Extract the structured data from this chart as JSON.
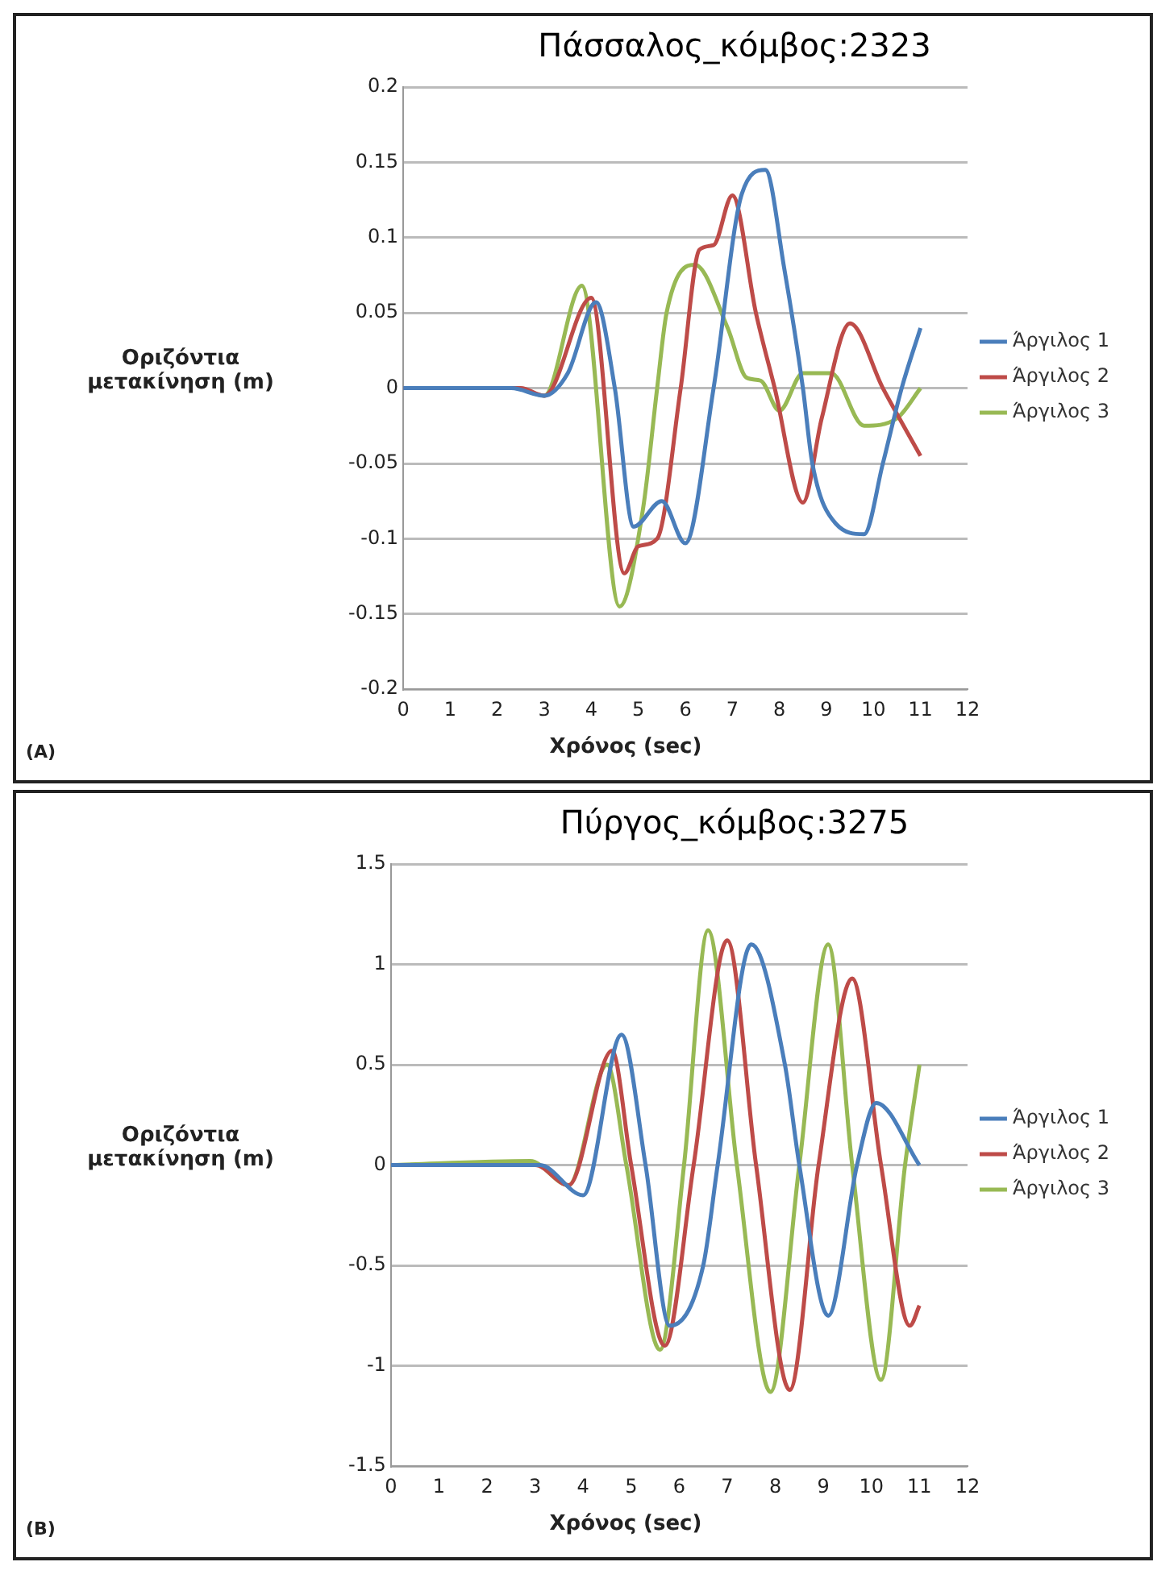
{
  "chart_data": [
    {
      "type": "line",
      "title": "Πάσσαλος_κόμβος:2323",
      "xlabel": "Χρόνος (sec)",
      "ylabel": "Οριζόντια μετακίνηση (m)",
      "annotations": [
        "(A)"
      ],
      "xlim": [
        0,
        12
      ],
      "xticks": [
        0,
        1,
        2,
        3,
        4,
        5,
        6,
        7,
        8,
        9,
        10,
        11,
        12
      ],
      "ylim": [
        -0.2,
        0.2
      ],
      "yticks": [
        -0.2,
        -0.15,
        -0.1,
        -0.05,
        0,
        0.05,
        0.1,
        0.15,
        0.2
      ],
      "grid": "y",
      "legend": "right",
      "marker": "none",
      "line_style": "solid",
      "series": [
        {
          "name": "Άργιλος 1",
          "color": "#4a7ebb",
          "x": [
            0,
            2.3,
            3,
            3.5,
            4.1,
            4.5,
            4.9,
            5.5,
            6.0,
            6.6,
            7.2,
            7.7,
            8.1,
            8.5,
            8.7,
            9.2,
            9.8,
            10.2,
            10.6,
            11
          ],
          "values": [
            0,
            0,
            -0.005,
            0.01,
            0.057,
            0,
            -0.092,
            -0.075,
            -0.103,
            0,
            0.129,
            0.145,
            0.08,
            0,
            -0.05,
            -0.09,
            -0.097,
            -0.05,
            0,
            0.04
          ]
        },
        {
          "name": "Άργιλος 2",
          "color": "#be4b48",
          "x": [
            0,
            2.5,
            3,
            4.0,
            4.7,
            5.0,
            5.4,
            5.9,
            6.3,
            6.6,
            7.0,
            7.5,
            7.9,
            8.5,
            8.9,
            9.5,
            10.2,
            11
          ],
          "values": [
            0,
            0,
            -0.005,
            0.06,
            -0.123,
            -0.105,
            -0.1,
            0,
            0.092,
            0.095,
            0.128,
            0.05,
            0,
            -0.076,
            -0.02,
            0.043,
            0,
            -0.045
          ]
        },
        {
          "name": "Άργιλος 3",
          "color": "#98b954",
          "x": [
            0,
            2.4,
            3,
            3.8,
            4.6,
            5.1,
            5.4,
            5.6,
            6.2,
            6.9,
            7.3,
            7.6,
            8.0,
            8.5,
            9.1,
            9.8,
            10.5,
            11
          ],
          "values": [
            0,
            0,
            -0.005,
            0.068,
            -0.145,
            -0.08,
            0,
            0.05,
            0.082,
            0.04,
            0.007,
            0.005,
            -0.015,
            0.01,
            0.01,
            -0.025,
            -0.02,
            0
          ]
        }
      ]
    },
    {
      "type": "line",
      "title": "Πύργος_κόμβος:3275",
      "xlabel": "Χρόνος (sec)",
      "ylabel": "Οριζόντια μετακίνηση (m)",
      "annotations": [
        "(B)"
      ],
      "xlim": [
        0,
        12
      ],
      "xticks": [
        0,
        1,
        2,
        3,
        4,
        5,
        6,
        7,
        8,
        9,
        10,
        11,
        12
      ],
      "ylim": [
        -1.5,
        1.5
      ],
      "yticks": [
        -1.5,
        -1,
        -0.5,
        0,
        0.5,
        1,
        1.5
      ],
      "grid": "y",
      "legend": "right",
      "marker": "none",
      "line_style": "solid",
      "series": [
        {
          "name": "Άργιλος 1",
          "color": "#4a7ebb",
          "x": [
            0,
            3.1,
            4.0,
            4.8,
            5.3,
            5.8,
            6.5,
            6.8,
            7.5,
            8.2,
            8.5,
            9.1,
            9.7,
            10.1,
            11
          ],
          "values": [
            0,
            0,
            -0.15,
            0.65,
            0,
            -0.8,
            -0.5,
            0,
            1.1,
            0.5,
            0,
            -0.75,
            0,
            0.31,
            0
          ]
        },
        {
          "name": "Άργιλος 2",
          "color": "#be4b48",
          "x": [
            0,
            3,
            3.7,
            4.6,
            5.0,
            5.7,
            6.3,
            7.0,
            7.6,
            8.3,
            8.9,
            9.6,
            10.2,
            10.8,
            11
          ],
          "values": [
            0,
            0,
            -0.1,
            0.57,
            0,
            -0.9,
            0,
            1.12,
            0,
            -1.12,
            0,
            0.93,
            0,
            -0.8,
            -0.7
          ]
        },
        {
          "name": "Άργιλος 3",
          "color": "#98b954",
          "x": [
            0,
            2.9,
            3.7,
            4.5,
            4.9,
            5.6,
            6.1,
            6.6,
            7.2,
            7.9,
            8.5,
            9.1,
            9.6,
            10.2,
            10.7,
            11
          ],
          "values": [
            0,
            0.02,
            -0.1,
            0.5,
            0,
            -0.92,
            0,
            1.17,
            0,
            -1.13,
            0,
            1.1,
            0,
            -1.07,
            0,
            0.5
          ]
        }
      ]
    }
  ]
}
